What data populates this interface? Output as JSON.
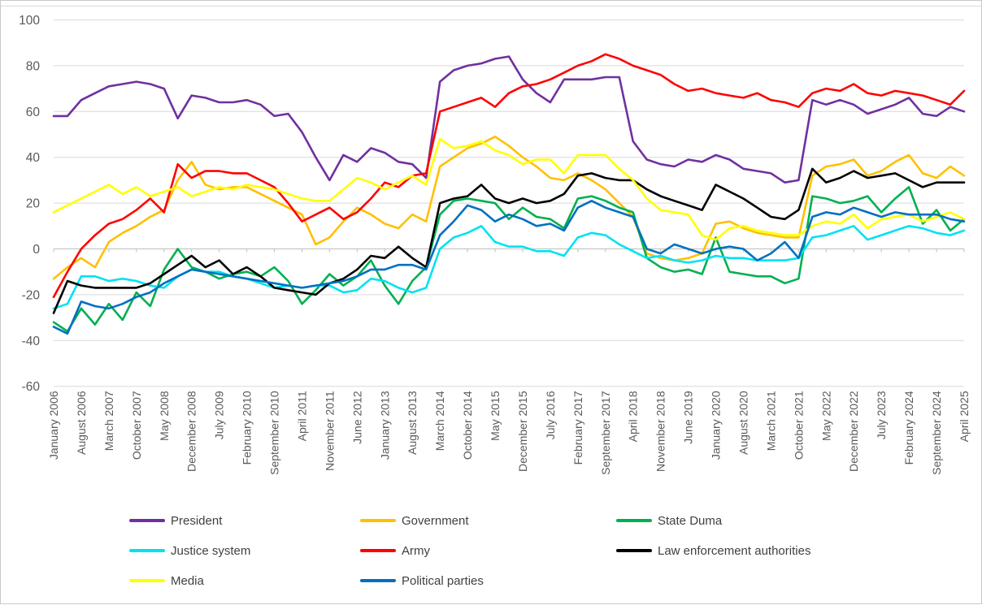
{
  "chart_data": {
    "type": "line",
    "title": "",
    "ylim": [
      -60,
      100
    ],
    "yticks": [
      100,
      80,
      60,
      40,
      20,
      0,
      -20,
      -40,
      -60
    ],
    "grid": "horizontal",
    "legend_position": "bottom",
    "points_per_tick_interval": 2,
    "x_tick_labels": [
      "January 2006",
      "August 2006",
      "March 2007",
      "October 2007",
      "May 2008",
      "December 2008",
      "July 2009",
      "February 2010",
      "September 2010",
      "April 2011",
      "November 2011",
      "June 2012",
      "January 2013",
      "August 2013",
      "March 2014",
      "October 2014",
      "May 2015",
      "December 2015",
      "July 2016",
      "February 2017",
      "September 2017",
      "April 2018",
      "November 2018",
      "June 2019",
      "January 2020",
      "August 2020",
      "March 2021",
      "October 2021",
      "May 2022",
      "December 2022",
      "July 2023",
      "February 2024",
      "September 2024",
      "April 2025"
    ],
    "series": [
      {
        "name": "President",
        "color": "#7030A0",
        "values": [
          58,
          58,
          65,
          68,
          71,
          72,
          73,
          72,
          70,
          57,
          67,
          66,
          64,
          64,
          65,
          63,
          58,
          59,
          51,
          40,
          30,
          41,
          38,
          44,
          42,
          38,
          37,
          31,
          73,
          78,
          80,
          81,
          83,
          84,
          74,
          68,
          64,
          74,
          74,
          74,
          75,
          75,
          47,
          39,
          37,
          36,
          39,
          38,
          41,
          39,
          35,
          34,
          33,
          29,
          30,
          65,
          63,
          65,
          63,
          59,
          61,
          63,
          66,
          59,
          58,
          62,
          60
        ]
      },
      {
        "name": "Government",
        "color": "#FFC000",
        "values": [
          -13,
          -8,
          -4,
          -8,
          3,
          7,
          10,
          14,
          17,
          30,
          38,
          28,
          26,
          27,
          27,
          24,
          21,
          18,
          15,
          2,
          5,
          12,
          18,
          15,
          11,
          9,
          15,
          12,
          36,
          40,
          44,
          46,
          49,
          45,
          40,
          36,
          31,
          30,
          33,
          30,
          26,
          20,
          14,
          -2,
          -4,
          -5,
          -4,
          -2,
          11,
          12,
          9,
          7,
          6,
          5,
          5,
          32,
          36,
          37,
          39,
          32,
          34,
          38,
          41,
          33,
          31,
          36,
          32
        ]
      },
      {
        "name": "State Duma",
        "color": "#00B050",
        "values": [
          -32,
          -36,
          -26,
          -33,
          -24,
          -31,
          -19,
          -25,
          -9,
          0,
          -8,
          -10,
          -13,
          -11,
          -10,
          -12,
          -8,
          -14,
          -24,
          -18,
          -11,
          -16,
          -12,
          -5,
          -16,
          -24,
          -14,
          -8,
          15,
          21,
          22,
          21,
          20,
          13,
          18,
          14,
          13,
          9,
          22,
          23,
          21,
          18,
          16,
          -4,
          -8,
          -10,
          -9,
          -11,
          5,
          -10,
          -11,
          -12,
          -12,
          -15,
          -13,
          23,
          22,
          20,
          21,
          23,
          16,
          22,
          27,
          11,
          17,
          8,
          13
        ]
      },
      {
        "name": "Justice system",
        "color": "#00E2F0",
        "values": [
          -26,
          -24,
          -12,
          -12,
          -14,
          -13,
          -14,
          -16,
          -17,
          -12,
          -9,
          -10,
          -10,
          -12,
          -13,
          -15,
          -17,
          -16,
          -17,
          -16,
          -16,
          -19,
          -18,
          -13,
          -14,
          -17,
          -19,
          -17,
          0,
          5,
          7,
          10,
          3,
          1,
          1,
          -1,
          -1,
          -3,
          5,
          7,
          6,
          2,
          -1,
          -4,
          -3,
          -5,
          -6,
          -5,
          -3,
          -4,
          -4,
          -5,
          -5,
          -5,
          -4,
          5,
          6,
          8,
          10,
          4,
          6,
          8,
          10,
          9,
          7,
          6,
          8
        ]
      },
      {
        "name": "Army",
        "color": "#FF0000",
        "values": [
          -21,
          -10,
          0,
          6,
          11,
          13,
          17,
          22,
          16,
          37,
          31,
          34,
          34,
          33,
          33,
          30,
          27,
          20,
          12,
          15,
          18,
          13,
          16,
          22,
          29,
          27,
          32,
          33,
          60,
          62,
          64,
          66,
          62,
          68,
          71,
          72,
          74,
          77,
          80,
          82,
          85,
          83,
          80,
          78,
          76,
          72,
          69,
          70,
          68,
          67,
          66,
          68,
          65,
          64,
          62,
          68,
          70,
          69,
          72,
          68,
          67,
          69,
          68,
          67,
          65,
          63,
          69
        ]
      },
      {
        "name": "Law enforcement authorities",
        "color": "#000000",
        "values": [
          -28,
          -14,
          -16,
          -17,
          -17,
          -17,
          -17,
          -15,
          -11,
          -7,
          -3,
          -8,
          -5,
          -11,
          -8,
          -12,
          -17,
          -18,
          -19,
          -20,
          -15,
          -13,
          -9,
          -3,
          -4,
          1,
          -4,
          -8,
          20,
          22,
          23,
          28,
          22,
          20,
          22,
          20,
          21,
          24,
          32,
          33,
          31,
          30,
          30,
          26,
          23,
          21,
          19,
          17,
          28,
          25,
          22,
          18,
          14,
          13,
          17,
          35,
          29,
          31,
          34,
          31,
          32,
          33,
          30,
          27,
          29,
          29,
          29
        ]
      },
      {
        "name": "Media",
        "color": "#FFFF00",
        "values": [
          16,
          19,
          22,
          25,
          28,
          24,
          27,
          23,
          25,
          27,
          23,
          25,
          27,
          26,
          28,
          27,
          26,
          24,
          22,
          21,
          21,
          26,
          31,
          29,
          26,
          29,
          32,
          28,
          48,
          44,
          45,
          47,
          43,
          41,
          37,
          39,
          39,
          33,
          41,
          41,
          41,
          35,
          30,
          22,
          17,
          16,
          15,
          6,
          4,
          9,
          10,
          8,
          7,
          6,
          6,
          10,
          12,
          11,
          15,
          9,
          13,
          14,
          15,
          12,
          14,
          16,
          13
        ]
      },
      {
        "name": "Political parties",
        "color": "#0070C0",
        "values": [
          -34,
          -37,
          -23,
          -25,
          -26,
          -24,
          -21,
          -19,
          -15,
          -12,
          -9,
          -10,
          -11,
          -12,
          -13,
          -14,
          -15,
          -16,
          -17,
          -16,
          -15,
          -14,
          -12,
          -9,
          -9,
          -7,
          -7,
          -9,
          6,
          12,
          19,
          17,
          12,
          15,
          13,
          10,
          11,
          8,
          18,
          21,
          18,
          16,
          14,
          0,
          -2,
          2,
          0,
          -2,
          0,
          1,
          0,
          -5,
          -2,
          3,
          -4,
          14,
          16,
          15,
          18,
          16,
          14,
          16,
          15,
          15,
          15,
          13,
          12
        ]
      }
    ]
  }
}
